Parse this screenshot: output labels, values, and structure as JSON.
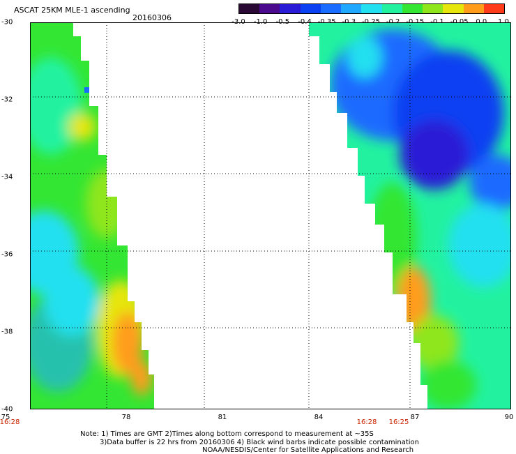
{
  "header": {
    "title": "ASCAT 25KM MLE-1 ascending",
    "date": "20160306"
  },
  "colorbar": {
    "tick_labels": [
      "-3.0",
      "-1.0",
      "-0.5",
      "-0.4",
      "-0.35",
      "-0.3",
      "-0.25",
      "-0.2",
      "-0.15",
      "-0.1",
      "-0.05",
      "0.0",
      "1.0"
    ],
    "colors": [
      "#2a0a35",
      "#4b0a8c",
      "#2a1bd6",
      "#0a3ff2",
      "#1a6bff",
      "#1fa8ff",
      "#22e0f0",
      "#22f2a0",
      "#33e633",
      "#8fe61a",
      "#e6e60a",
      "#ff9c1a",
      "#ff3a1a"
    ]
  },
  "map": {
    "x_axis_labels": [
      "75",
      "78",
      "81",
      "84",
      "87",
      "90"
    ],
    "y_axis_labels": [
      "-30",
      "-32",
      "-34",
      "-36",
      "-38",
      "-40"
    ],
    "times": [
      {
        "label": "16:28",
        "at": "75"
      },
      {
        "label": "16:28",
        "at": "85.5"
      },
      {
        "label": "16:25",
        "at": "86.5"
      }
    ],
    "region": {
      "lon_range": [
        75,
        90
      ],
      "lat_range": [
        -40,
        -30
      ]
    }
  },
  "notes": [
    "Note: 1) Times are GMT 2)Times along bottom correspond to measurement at ~35S",
    "3)Data buffer is 22 hrs from 20160306 4) Black wind barbs indicate possible contamination",
    "NOAA/NESDIS/Center for Satellite Applications and Research"
  ]
}
